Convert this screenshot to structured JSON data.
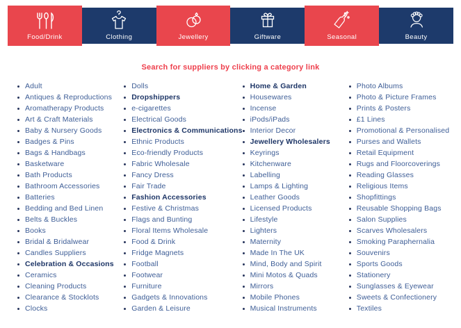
{
  "colors": {
    "tab_red": "#e9464d",
    "tab_navy": "#1d3a6b",
    "heading_red": "#ee404d",
    "link_blue": "#3d5d96",
    "link_bold_navy": "#1d3566"
  },
  "tabs": [
    {
      "label": "Food/Drink",
      "icon": "cutlery-icon",
      "style": "red"
    },
    {
      "label": "Clothing",
      "icon": "tshirt-hanger-icon",
      "style": "blue"
    },
    {
      "label": "Jewellery",
      "icon": "rings-icon",
      "style": "red"
    },
    {
      "label": "Giftware",
      "icon": "gift-box-icon",
      "style": "blue"
    },
    {
      "label": "Seasonal",
      "icon": "champagne-bottle-icon",
      "style": "red"
    },
    {
      "label": "Beauty",
      "icon": "beauty-head-icon",
      "style": "blue"
    }
  ],
  "heading": "Search for suppliers by clicking a category link",
  "columns": [
    {
      "items": [
        {
          "label": "Adult",
          "bold": false
        },
        {
          "label": "Antiques & Reproductions",
          "bold": false
        },
        {
          "label": "Aromatherapy Products",
          "bold": false
        },
        {
          "label": "Art & Craft Materials",
          "bold": false
        },
        {
          "label": "Baby & Nursery Goods",
          "bold": false
        },
        {
          "label": "Badges & Pins",
          "bold": false
        },
        {
          "label": "Bags & Handbags",
          "bold": false
        },
        {
          "label": "Basketware",
          "bold": false
        },
        {
          "label": "Bath Products",
          "bold": false
        },
        {
          "label": "Bathroom Accessories",
          "bold": false
        },
        {
          "label": "Batteries",
          "bold": false
        },
        {
          "label": "Bedding and Bed Linen",
          "bold": false
        },
        {
          "label": "Belts & Buckles",
          "bold": false
        },
        {
          "label": "Books",
          "bold": false
        },
        {
          "label": "Bridal & Bridalwear",
          "bold": false
        },
        {
          "label": "Candles Suppliers",
          "bold": false
        },
        {
          "label": "Celebration & Occasions",
          "bold": true
        },
        {
          "label": "Ceramics",
          "bold": false
        },
        {
          "label": "Cleaning Products",
          "bold": false
        },
        {
          "label": "Clearance & Stocklots",
          "bold": false
        },
        {
          "label": "Clocks",
          "bold": false
        }
      ]
    },
    {
      "items": [
        {
          "label": "Dolls",
          "bold": false
        },
        {
          "label": "Dropshippers",
          "bold": true
        },
        {
          "label": "e-cigarettes",
          "bold": false
        },
        {
          "label": "Electrical Goods",
          "bold": false
        },
        {
          "label": "Electronics & Communications",
          "bold": true
        },
        {
          "label": "Ethnic Products",
          "bold": false
        },
        {
          "label": "Eco-friendly Products",
          "bold": false
        },
        {
          "label": "Fabric Wholesale",
          "bold": false
        },
        {
          "label": "Fancy Dress",
          "bold": false
        },
        {
          "label": "Fair Trade",
          "bold": false
        },
        {
          "label": "Fashion Accessories",
          "bold": true
        },
        {
          "label": "Festive & Christmas",
          "bold": false
        },
        {
          "label": "Flags and Bunting",
          "bold": false
        },
        {
          "label": "Floral Items Wholesale",
          "bold": false
        },
        {
          "label": "Food & Drink",
          "bold": false
        },
        {
          "label": "Fridge Magnets",
          "bold": false
        },
        {
          "label": "Football",
          "bold": false
        },
        {
          "label": "Footwear",
          "bold": false
        },
        {
          "label": "Furniture",
          "bold": false
        },
        {
          "label": "Gadgets & Innovations",
          "bold": false
        },
        {
          "label": "Garden & Leisure",
          "bold": false
        }
      ]
    },
    {
      "items": [
        {
          "label": "Home & Garden",
          "bold": true
        },
        {
          "label": "Housewares",
          "bold": false
        },
        {
          "label": "Incense",
          "bold": false
        },
        {
          "label": "iPods/iPads",
          "bold": false
        },
        {
          "label": "Interior Decor",
          "bold": false
        },
        {
          "label": "Jewellery Wholesalers",
          "bold": true
        },
        {
          "label": "Keyrings",
          "bold": false
        },
        {
          "label": "Kitchenware",
          "bold": false
        },
        {
          "label": "Labelling",
          "bold": false
        },
        {
          "label": "Lamps & Lighting",
          "bold": false
        },
        {
          "label": "Leather Goods",
          "bold": false
        },
        {
          "label": "Licensed Products",
          "bold": false
        },
        {
          "label": "Lifestyle",
          "bold": false
        },
        {
          "label": "Lighters",
          "bold": false
        },
        {
          "label": "Maternity",
          "bold": false
        },
        {
          "label": "Made In The UK",
          "bold": false
        },
        {
          "label": "Mind, Body and Spirit",
          "bold": false
        },
        {
          "label": "Mini Motos & Quads",
          "bold": false
        },
        {
          "label": "Mirrors",
          "bold": false
        },
        {
          "label": "Mobile Phones",
          "bold": false
        },
        {
          "label": "Musical Instruments",
          "bold": false
        }
      ]
    },
    {
      "items": [
        {
          "label": "Photo Albums",
          "bold": false
        },
        {
          "label": "Photo & Picture Frames",
          "bold": false
        },
        {
          "label": "Prints & Posters",
          "bold": false
        },
        {
          "label": "£1 Lines",
          "bold": false
        },
        {
          "label": "Promotional & Personalised",
          "bold": false
        },
        {
          "label": "Purses and Wallets",
          "bold": false
        },
        {
          "label": "Retail Equipment",
          "bold": false
        },
        {
          "label": "Rugs and Floorcoverings",
          "bold": false
        },
        {
          "label": "Reading Glasses",
          "bold": false
        },
        {
          "label": "Religious Items",
          "bold": false
        },
        {
          "label": "Shopfittings",
          "bold": false
        },
        {
          "label": "Reusable Shopping Bags",
          "bold": false
        },
        {
          "label": "Salon Supplies",
          "bold": false
        },
        {
          "label": "Scarves Wholesalers",
          "bold": false
        },
        {
          "label": "Smoking Paraphernalia",
          "bold": false
        },
        {
          "label": "Souvenirs",
          "bold": false
        },
        {
          "label": "Sports Goods",
          "bold": false
        },
        {
          "label": "Stationery",
          "bold": false
        },
        {
          "label": "Sunglasses & Eyewear",
          "bold": false
        },
        {
          "label": "Sweets & Confectionery",
          "bold": false
        },
        {
          "label": "Textiles",
          "bold": false
        }
      ]
    }
  ]
}
